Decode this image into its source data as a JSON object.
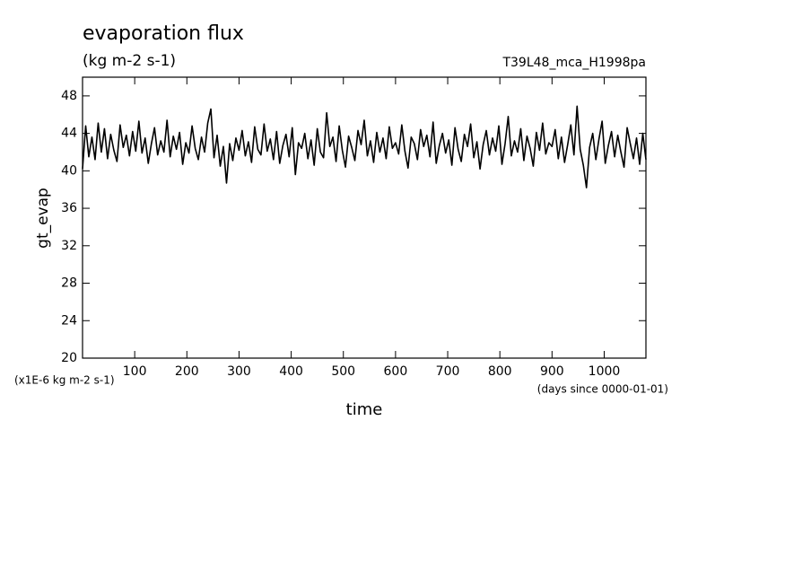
{
  "chart_data": {
    "type": "line",
    "title": "evaporation flux",
    "subtitle": "(kg m-2 s-1)",
    "run_label": "T39L48_mca_H1998pa",
    "y_label": "gt_evap",
    "x_label": "time",
    "y_unit_note": "(x1E-6 kg m-2 s-1)",
    "x_unit_note": "(days since 0000-01-01)",
    "xlim": [
      0,
      1080
    ],
    "ylim": [
      20,
      50
    ],
    "xticks": [
      100,
      200,
      300,
      400,
      500,
      600,
      700,
      800,
      900,
      1000
    ],
    "yticks": [
      20,
      24,
      28,
      32,
      36,
      40,
      44,
      48
    ],
    "x": [
      0,
      6,
      12,
      18,
      24,
      30,
      36,
      42,
      48,
      54,
      60,
      66,
      72,
      78,
      84,
      90,
      96,
      102,
      108,
      114,
      120,
      126,
      132,
      138,
      144,
      150,
      156,
      162,
      168,
      174,
      180,
      186,
      192,
      198,
      204,
      210,
      216,
      222,
      228,
      234,
      240,
      246,
      252,
      258,
      264,
      270,
      276,
      282,
      288,
      294,
      300,
      306,
      312,
      318,
      324,
      330,
      336,
      342,
      348,
      354,
      360,
      366,
      372,
      378,
      384,
      390,
      396,
      402,
      408,
      414,
      420,
      426,
      432,
      438,
      444,
      450,
      456,
      462,
      468,
      474,
      480,
      486,
      492,
      498,
      504,
      510,
      516,
      522,
      528,
      534,
      540,
      546,
      552,
      558,
      564,
      570,
      576,
      582,
      588,
      594,
      600,
      606,
      612,
      618,
      624,
      630,
      636,
      642,
      648,
      654,
      660,
      666,
      672,
      678,
      684,
      690,
      696,
      702,
      708,
      714,
      720,
      726,
      732,
      738,
      744,
      750,
      756,
      762,
      768,
      774,
      780,
      786,
      792,
      798,
      804,
      810,
      816,
      822,
      828,
      834,
      840,
      846,
      852,
      858,
      864,
      870,
      876,
      882,
      888,
      894,
      900,
      906,
      912,
      918,
      924,
      930,
      936,
      942,
      948,
      954,
      960,
      966,
      972,
      978,
      984,
      990,
      996,
      1002,
      1008,
      1014,
      1020,
      1026,
      1032,
      1038,
      1044,
      1050,
      1056,
      1062,
      1068,
      1074,
      1080
    ],
    "series": [
      {
        "color": "#000000",
        "values": [
          40.2,
          44.8,
          41.5,
          43.6,
          41.2,
          45.1,
          42.0,
          44.5,
          41.3,
          43.9,
          42.2,
          41.0,
          44.9,
          42.5,
          43.8,
          41.6,
          44.2,
          42.1,
          45.3,
          41.9,
          43.5,
          40.8,
          42.9,
          44.6,
          41.7,
          43.2,
          42.0,
          45.4,
          41.5,
          43.7,
          42.3,
          44.1,
          40.7,
          43.0,
          41.9,
          44.8,
          42.4,
          41.2,
          43.6,
          42.0,
          45.1,
          46.6,
          41.4,
          43.8,
          40.5,
          42.6,
          38.7,
          42.9,
          41.1,
          43.5,
          42.2,
          44.3,
          41.6,
          43.1,
          40.9,
          44.7,
          42.3,
          41.7,
          45.0,
          42.1,
          43.4,
          41.2,
          44.2,
          40.8,
          42.7,
          43.9,
          41.5,
          44.6,
          39.6,
          43.0,
          42.4,
          44.0,
          41.3,
          43.3,
          40.6,
          44.5,
          42.0,
          41.4,
          46.2,
          42.6,
          43.6,
          41.0,
          44.8,
          42.2,
          40.4,
          43.7,
          42.5,
          41.1,
          44.3,
          42.8,
          45.4,
          41.6,
          43.2,
          40.9,
          44.1,
          42.0,
          43.5,
          41.3,
          44.7,
          42.4,
          43.0,
          41.8,
          44.9,
          42.1,
          40.3,
          43.6,
          42.9,
          41.2,
          44.4,
          42.6,
          43.8,
          41.5,
          45.2,
          40.8,
          42.7,
          44.0,
          41.9,
          43.3,
          40.6,
          44.6,
          42.3,
          41.0,
          43.9,
          42.6,
          45.0,
          41.4,
          43.1,
          40.2,
          42.8,
          44.3,
          41.7,
          43.5,
          42.1,
          44.8,
          40.7,
          42.9,
          45.8,
          41.6,
          43.2,
          42.0,
          44.5,
          41.1,
          43.7,
          42.4,
          40.5,
          44.1,
          42.2,
          45.1,
          41.8,
          43.0,
          42.6,
          44.4,
          41.3,
          43.6,
          40.9,
          42.8,
          44.9,
          41.7,
          46.9,
          42.3,
          40.6,
          38.2,
          42.5,
          44.0,
          41.2,
          43.4,
          45.3,
          40.8,
          42.7,
          44.2,
          41.5,
          43.8,
          42.0,
          40.4,
          44.6,
          42.9,
          41.3,
          43.5,
          40.7,
          44.0,
          41.2
        ]
      }
    ]
  }
}
